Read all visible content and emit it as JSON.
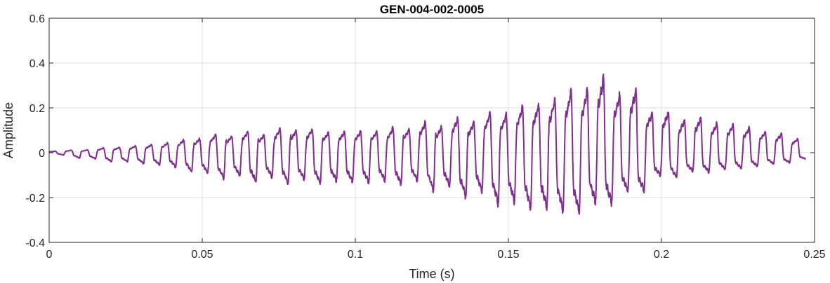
{
  "chart_data": {
    "type": "line",
    "title": "GEN-004-002-0005",
    "xlabel": "Time (s)",
    "ylabel": "Amplitude",
    "xlim": [
      0,
      0.25
    ],
    "ylim": [
      -0.4,
      0.6
    ],
    "xticks": [
      0,
      0.05,
      0.1,
      0.15,
      0.2,
      0.25
    ],
    "xtick_labels": [
      "0",
      "0.05",
      "0.1",
      "0.15",
      "0.2",
      "0.25"
    ],
    "yticks": [
      -0.4,
      -0.2,
      0,
      0.2,
      0.4,
      0.6
    ],
    "ytick_labels": [
      "-0.4",
      "-0.2",
      "0",
      "0.2",
      "0.4",
      "0.6"
    ],
    "grid": true,
    "line_color": "#7e2f8e",
    "signal": {
      "description_of_shape": "oscillating waveform",
      "duration": 0.247,
      "base_frequency_hz": 190,
      "envelope": [
        {
          "t": 0.0,
          "pos": 0.01,
          "neg": -0.005
        },
        {
          "t": 0.01,
          "pos": 0.015,
          "neg": -0.03
        },
        {
          "t": 0.02,
          "pos": 0.03,
          "neg": -0.05
        },
        {
          "t": 0.03,
          "pos": 0.04,
          "neg": -0.06
        },
        {
          "t": 0.04,
          "pos": 0.06,
          "neg": -0.08
        },
        {
          "t": 0.05,
          "pos": 0.09,
          "neg": -0.12
        },
        {
          "t": 0.06,
          "pos": 0.11,
          "neg": -0.15
        },
        {
          "t": 0.07,
          "pos": 0.12,
          "neg": -0.16
        },
        {
          "t": 0.08,
          "pos": 0.14,
          "neg": -0.17
        },
        {
          "t": 0.09,
          "pos": 0.12,
          "neg": -0.17
        },
        {
          "t": 0.1,
          "pos": 0.12,
          "neg": -0.17
        },
        {
          "t": 0.11,
          "pos": 0.13,
          "neg": -0.17
        },
        {
          "t": 0.12,
          "pos": 0.16,
          "neg": -0.18
        },
        {
          "t": 0.13,
          "pos": 0.18,
          "neg": -0.23
        },
        {
          "t": 0.14,
          "pos": 0.2,
          "neg": -0.25
        },
        {
          "t": 0.15,
          "pos": 0.24,
          "neg": -0.3
        },
        {
          "t": 0.16,
          "pos": 0.28,
          "neg": -0.32
        },
        {
          "t": 0.17,
          "pos": 0.34,
          "neg": -0.35
        },
        {
          "t": 0.18,
          "pos": 0.42,
          "neg": -0.3
        },
        {
          "t": 0.19,
          "pos": 0.36,
          "neg": -0.25
        },
        {
          "t": 0.2,
          "pos": 0.23,
          "neg": -0.15
        },
        {
          "t": 0.21,
          "pos": 0.2,
          "neg": -0.12
        },
        {
          "t": 0.22,
          "pos": 0.17,
          "neg": -0.1
        },
        {
          "t": 0.23,
          "pos": 0.14,
          "neg": -0.08
        },
        {
          "t": 0.24,
          "pos": 0.1,
          "neg": -0.06
        },
        {
          "t": 0.247,
          "pos": 0.08,
          "neg": -0.04
        }
      ]
    }
  }
}
